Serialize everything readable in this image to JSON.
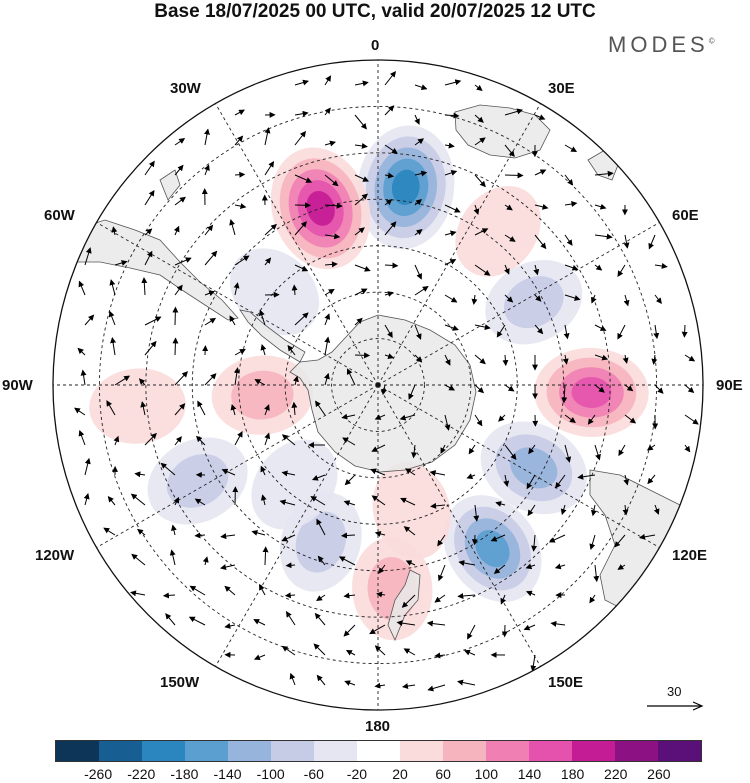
{
  "title": "Base 18/07/2025 00 UTC, valid 20/07/2025 12 UTC",
  "brand": "MODES",
  "brand_mark": "©",
  "longitude_labels": {
    "lon_0": "0",
    "lon_30e": "30E",
    "lon_60e": "60E",
    "lon_90e": "90E",
    "lon_120e": "120E",
    "lon_150e": "150E",
    "lon_180": "180",
    "lon_150w": "150W",
    "lon_120w": "120W",
    "lon_90w": "90W",
    "lon_60w": "60W",
    "lon_30w": "30W"
  },
  "wind_scale_label": "30",
  "colorbar": {
    "ticks": [
      "-260",
      "-220",
      "-180",
      "-140",
      "-100",
      "-60",
      "-20",
      "20",
      "60",
      "100",
      "140",
      "180",
      "220",
      "260"
    ],
    "colors": [
      "#0c3557",
      "#175f92",
      "#2b85bf",
      "#5b9ed0",
      "#96b4dc",
      "#c6cbe6",
      "#e6e5f2",
      "#ffffff",
      "#fbdcdc",
      "#f6b4be",
      "#f07fb4",
      "#e452ad",
      "#c41c95",
      "#8c1283",
      "#5a1078"
    ]
  },
  "anomaly_centers": [
    {
      "lon": 8,
      "lat": -47,
      "value": -200
    },
    {
      "lon": -18,
      "lat": -50,
      "value": 200
    },
    {
      "lon": 38,
      "lat": -48,
      "value": 40
    },
    {
      "lon": 62,
      "lat": -52,
      "value": -60
    },
    {
      "lon": 92,
      "lat": -44,
      "value": 140
    },
    {
      "lon": 118,
      "lat": -52,
      "value": -120
    },
    {
      "lon": 145,
      "lat": -47,
      "value": -140
    },
    {
      "lon": 176,
      "lat": -46,
      "value": 70
    },
    {
      "lon": -160,
      "lat": -54,
      "value": -60
    },
    {
      "lon": -118,
      "lat": -46,
      "value": -80
    },
    {
      "lon": -95,
      "lat": -65,
      "value": 60
    },
    {
      "lon": -95,
      "lat": -38,
      "value": 30
    },
    {
      "lon": -48,
      "lat": -60,
      "value": -40
    },
    {
      "lon": -140,
      "lat": -62,
      "value": -40
    },
    {
      "lon": 165,
      "lat": -62,
      "value": 40
    }
  ]
}
